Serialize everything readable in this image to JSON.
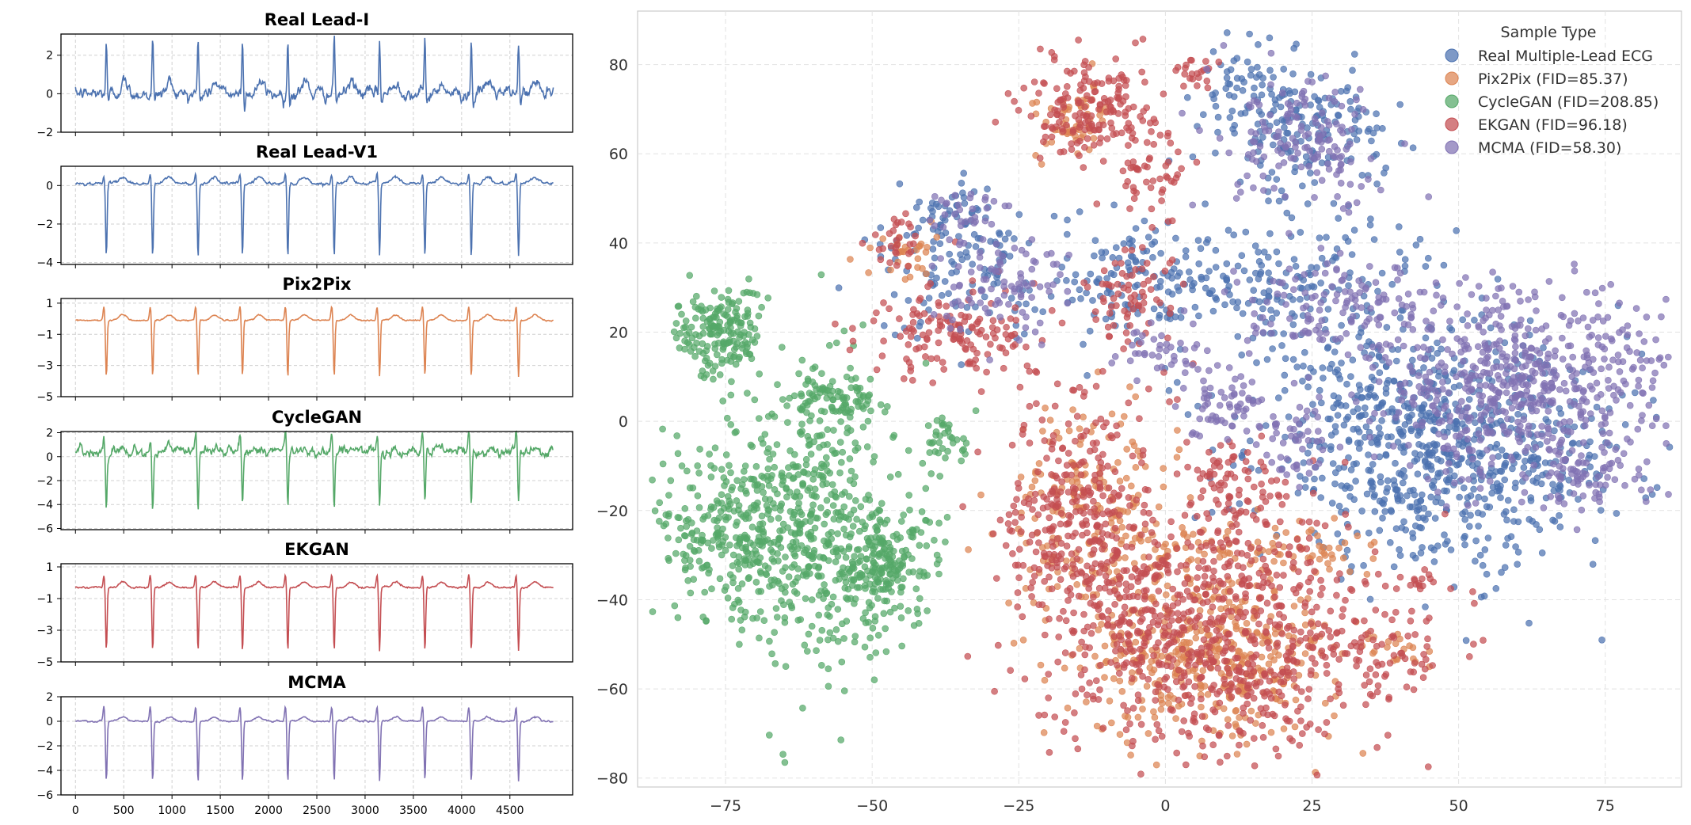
{
  "figure": {
    "ecg_ticks_x": [
      "0",
      "500",
      "1000",
      "1500",
      "2000",
      "2500",
      "3000",
      "3500",
      "4000",
      "4500"
    ]
  },
  "chart_data": [
    {
      "type": "line",
      "title": "Real Lead-I",
      "color": "#4c72b0",
      "x_range": [
        0,
        4950
      ],
      "ylim": [
        -2,
        3.1
      ],
      "yticks": [
        -2,
        0,
        2
      ],
      "ytick_labels": [
        "−2",
        "0",
        "2"
      ],
      "grid": true,
      "beat_positions": [
        320,
        800,
        1270,
        1730,
        2200,
        2680,
        3150,
        3620,
        4100,
        4590
      ],
      "baseline": 0.0,
      "r_peak": 2.8,
      "q_trough": -0.5,
      "noise_amplitude": 0.35
    },
    {
      "type": "line",
      "title": "Real Lead-V1",
      "color": "#4c72b0",
      "x_range": [
        0,
        4950
      ],
      "ylim": [
        -4.1,
        1.0
      ],
      "yticks": [
        -4,
        -2,
        0
      ],
      "ytick_labels": [
        "−4",
        "−2",
        "0"
      ],
      "grid": true,
      "beat_positions": [
        320,
        800,
        1270,
        1730,
        2200,
        2680,
        3150,
        3620,
        4100,
        4590
      ],
      "baseline": 0.1,
      "s_trough": -3.8,
      "r_peak": 0.5,
      "noise_amplitude": 0.08
    },
    {
      "type": "line",
      "title": "Pix2Pix",
      "color": "#dd8452",
      "x_range": [
        0,
        4950
      ],
      "ylim": [
        -5,
        1.3
      ],
      "yticks": [
        -5,
        -3,
        -1,
        1
      ],
      "ytick_labels": [
        "−5",
        "−3",
        "−1",
        "1"
      ],
      "grid": true,
      "beat_positions": [
        320,
        800,
        1270,
        1730,
        2200,
        2680,
        3150,
        3620,
        4100,
        4590
      ],
      "baseline": -0.1,
      "s_trough": -3.6,
      "r_peak": 0.9,
      "noise_amplitude": 0.05
    },
    {
      "type": "line",
      "title": "CycleGAN",
      "color": "#55a868",
      "x_range": [
        0,
        4950
      ],
      "ylim": [
        -6.1,
        2.1
      ],
      "yticks": [
        -6,
        -4,
        -2,
        0,
        2
      ],
      "ytick_labels": [
        "−6",
        "−4",
        "−2",
        "0",
        "2"
      ],
      "grid": true,
      "beat_positions": [
        320,
        800,
        1270,
        1730,
        2200,
        2680,
        3150,
        3620,
        4100,
        4590
      ],
      "baseline": 0.4,
      "s_trough": -4.6,
      "r_peak": 1.6,
      "noise_amplitude": 0.45
    },
    {
      "type": "line",
      "title": "EKGAN",
      "color": "#c44e52",
      "x_range": [
        0,
        4950
      ],
      "ylim": [
        -5,
        1.2
      ],
      "yticks": [
        -5,
        -3,
        -1,
        1
      ],
      "ytick_labels": [
        "−5",
        "−3",
        "−1",
        "1"
      ],
      "grid": true,
      "beat_positions": [
        320,
        800,
        1270,
        1730,
        2200,
        2680,
        3150,
        3620,
        4100,
        4590
      ],
      "baseline": -0.3,
      "s_trough": -4.0,
      "r_peak": 0.8,
      "noise_amplitude": 0.06
    },
    {
      "type": "line",
      "title": "MCMA",
      "color": "#8172b3",
      "x_range": [
        0,
        4950
      ],
      "ylim": [
        -6,
        2
      ],
      "yticks": [
        -6,
        -4,
        -2,
        0,
        2
      ],
      "ytick_labels": [
        "−6",
        "−4",
        "−2",
        "0",
        "2"
      ],
      "xticks": [
        0,
        500,
        1000,
        1500,
        2000,
        2500,
        3000,
        3500,
        4000,
        4500
      ],
      "grid": true,
      "beat_positions": [
        320,
        800,
        1270,
        1730,
        2200,
        2680,
        3150,
        3620,
        4100,
        4590
      ],
      "baseline": 0.0,
      "s_trough": -4.9,
      "r_peak": 1.2,
      "noise_amplitude": 0.07
    },
    {
      "type": "scatter",
      "title": "",
      "xlim": [
        -90,
        88
      ],
      "ylim": [
        -82,
        92
      ],
      "xticks": [
        -75,
        -50,
        -25,
        0,
        25,
        50,
        75
      ],
      "xtick_labels": [
        "−75",
        "−50",
        "−25",
        "0",
        "25",
        "50",
        "75"
      ],
      "yticks": [
        -80,
        -60,
        -40,
        -20,
        0,
        20,
        40,
        60,
        80
      ],
      "ytick_labels": [
        "−80",
        "−60",
        "−40",
        "−20",
        "0",
        "20",
        "40",
        "60",
        "80"
      ],
      "grid": true,
      "legend": {
        "title": "Sample Type",
        "position": "top-right",
        "entries": [
          "Real Multiple-Lead ECG",
          "Pix2Pix (FID=85.37)",
          "CycleGAN (FID=208.85)",
          "EKGAN (FID=96.18)",
          "MCMA (FID=58.30)"
        ]
      },
      "series": [
        {
          "name": "Real Multiple-Lead ECG",
          "color": "#4c72b0",
          "clusters": [
            {
              "cx": 48,
              "cy": -8,
              "sx": 16,
              "sy": 12,
              "n": 700
            },
            {
              "cx": 24,
              "cy": 65,
              "sx": 7,
              "sy": 7,
              "n": 170
            },
            {
              "cx": 20,
              "cy": 30,
              "sx": 14,
              "sy": 8,
              "n": 220
            },
            {
              "cx": 35,
              "cy": 5,
              "sx": 6,
              "sy": 8,
              "n": 90
            },
            {
              "cx": -33,
              "cy": 34,
              "sx": 9,
              "sy": 8,
              "n": 130
            },
            {
              "cx": -5,
              "cy": 32,
              "sx": 6,
              "sy": 6,
              "n": 90
            },
            {
              "cx": 13,
              "cy": 75,
              "sx": 4,
              "sy": 5,
              "n": 50
            },
            {
              "cx": -38,
              "cy": 45,
              "sx": 4,
              "sy": 4,
              "n": 35
            }
          ]
        },
        {
          "name": "Pix2Pix (FID=85.37)",
          "color": "#dd8452",
          "clusters": [
            {
              "cx": 8,
              "cy": -52,
              "sx": 11,
              "sy": 9,
              "n": 420
            },
            {
              "cx": -13,
              "cy": -20,
              "sx": 7,
              "sy": 12,
              "n": 200
            },
            {
              "cx": -15,
              "cy": 67,
              "sx": 3.5,
              "sy": 4,
              "n": 60
            },
            {
              "cx": 5,
              "cy": -28,
              "sx": 8,
              "sy": 3,
              "n": 60
            },
            {
              "cx": 25,
              "cy": -29,
              "sx": 5,
              "sy": 3,
              "n": 40
            },
            {
              "cx": -45,
              "cy": 37,
              "sx": 3,
              "sy": 3,
              "n": 30
            },
            {
              "cx": 40,
              "cy": -51,
              "sx": 3,
              "sy": 3,
              "n": 20
            }
          ]
        },
        {
          "name": "CycleGAN (FID=208.85)",
          "color": "#55a868",
          "clusters": [
            {
              "cx": -73,
              "cy": -25,
              "sx": 7,
              "sy": 10,
              "n": 300
            },
            {
              "cx": -60,
              "cy": -20,
              "sx": 7,
              "sy": 18,
              "n": 450
            },
            {
              "cx": -48,
              "cy": -32,
              "sx": 5,
              "sy": 6,
              "n": 200
            },
            {
              "cx": -76,
              "cy": 20,
              "sx": 3.5,
              "sy": 5,
              "n": 180
            },
            {
              "cx": -55,
              "cy": 5,
              "sx": 4,
              "sy": 3,
              "n": 60
            },
            {
              "cx": -37,
              "cy": -4,
              "sx": 2,
              "sy": 3,
              "n": 35
            }
          ]
        },
        {
          "name": "EKGAN (FID=96.18)",
          "color": "#c44e52",
          "clusters": [
            {
              "cx": 8,
              "cy": -48,
              "sx": 14,
              "sy": 14,
              "n": 750
            },
            {
              "cx": -15,
              "cy": -20,
              "sx": 6,
              "sy": 14,
              "n": 300
            },
            {
              "cx": -12,
              "cy": 70,
              "sx": 6,
              "sy": 6,
              "n": 180
            },
            {
              "cx": -35,
              "cy": 20,
              "sx": 8,
              "sy": 5,
              "n": 140
            },
            {
              "cx": -5,
              "cy": 28,
              "sx": 4,
              "sy": 6,
              "n": 70
            },
            {
              "cx": 12,
              "cy": -15,
              "sx": 5,
              "sy": 5,
              "n": 80
            },
            {
              "cx": 38,
              "cy": -52,
              "sx": 5,
              "sy": 5,
              "n": 60
            },
            {
              "cx": -2,
              "cy": 55,
              "sx": 3,
              "sy": 4,
              "n": 40
            },
            {
              "cx": -45,
              "cy": 40,
              "sx": 3,
              "sy": 3,
              "n": 30
            },
            {
              "cx": 43,
              "cy": -37,
              "sx": 2,
              "sy": 1.5,
              "n": 15
            },
            {
              "cx": 5,
              "cy": 78,
              "sx": 2,
              "sy": 2,
              "n": 20
            }
          ]
        },
        {
          "name": "MCMA (FID=58.30)",
          "color": "#8172b3",
          "clusters": [
            {
              "cx": 60,
              "cy": 8,
              "sx": 13,
              "sy": 11,
              "n": 600
            },
            {
              "cx": 25,
              "cy": 62,
              "sx": 7,
              "sy": 7,
              "n": 150
            },
            {
              "cx": 30,
              "cy": 25,
              "sx": 8,
              "sy": 5,
              "n": 120
            },
            {
              "cx": -28,
              "cy": 32,
              "sx": 6,
              "sy": 6,
              "n": 90
            },
            {
              "cx": 10,
              "cy": 5,
              "sx": 4,
              "sy": 4,
              "n": 60
            },
            {
              "cx": 22,
              "cy": -4,
              "sx": 3,
              "sy": 4,
              "n": 50
            },
            {
              "cx": -35,
              "cy": 47,
              "sx": 3,
              "sy": 3,
              "n": 30
            },
            {
              "cx": 0,
              "cy": 15,
              "sx": 4,
              "sy": 3,
              "n": 40
            },
            {
              "cx": 73,
              "cy": -12,
              "sx": 4,
              "sy": 4,
              "n": 60
            }
          ]
        }
      ]
    }
  ]
}
